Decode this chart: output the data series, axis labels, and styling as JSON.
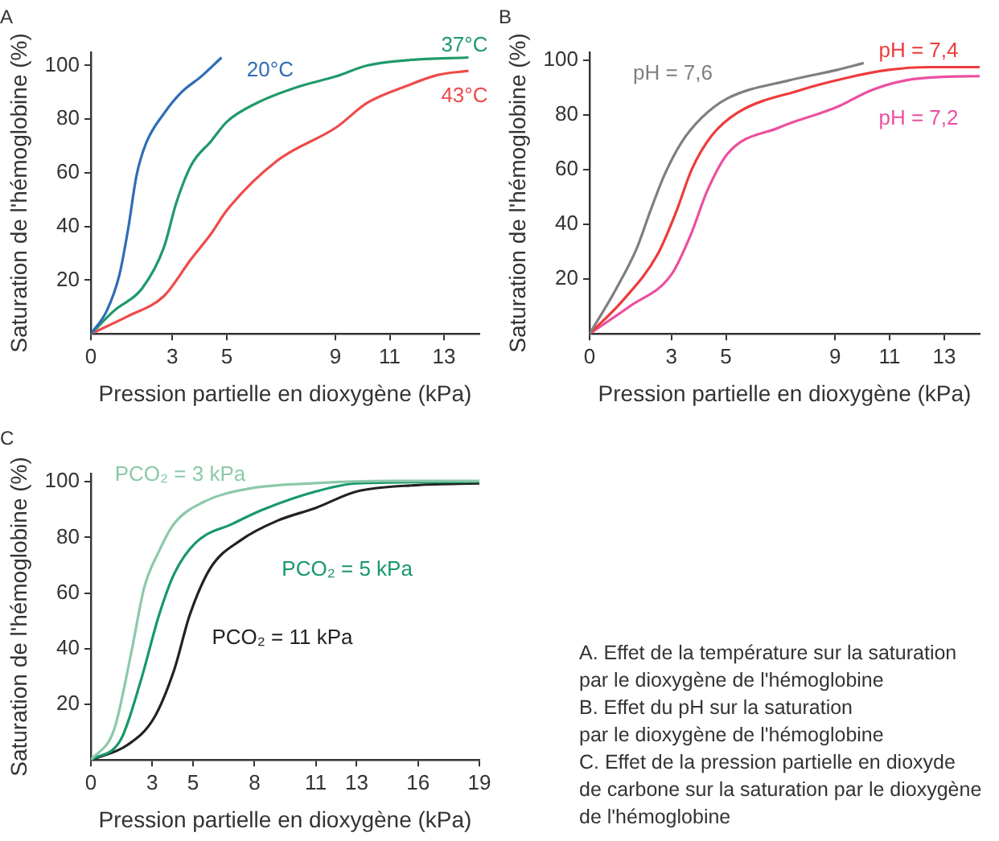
{
  "chart_data": [
    {
      "type": "line",
      "title": "A",
      "xlabel": "Pression partielle en dioxygène (kPa)",
      "ylabel": "Saturation de l'hémoglobine (%)",
      "xlim": [
        0,
        14.3
      ],
      "xticks": [
        0,
        3,
        5,
        9,
        11,
        13
      ],
      "ylim": [
        0,
        105
      ],
      "yticks": [
        20,
        40,
        60,
        80,
        100
      ],
      "grid": false,
      "legend": false,
      "marker": "none",
      "line_style": "solid",
      "series": [
        {
          "name": "20°C",
          "color": "#2f6db5",
          "x": [
            0,
            0.58,
            1.05,
            1.37,
            1.68,
            2.03,
            2.68,
            3.33,
            4.07,
            4.81
          ],
          "values": [
            0,
            8.5,
            22,
            39,
            59,
            71,
            82,
            90,
            96,
            103
          ]
        },
        {
          "name": "37°C",
          "color": "#1f9a6a",
          "x": [
            0,
            0.84,
            1.89,
            2.68,
            3.15,
            3.7,
            4.44,
            5,
            6.1,
            7.6,
            9.04,
            10.16,
            11.65,
            13.9
          ],
          "values": [
            0,
            8.5,
            17,
            32,
            49,
            63,
            72,
            79,
            86,
            92,
            96,
            100,
            102,
            103
          ]
        },
        {
          "name": "43°C",
          "color": "#ee4b4b",
          "x": [
            0,
            1.37,
            2.68,
            3.7,
            4.44,
            5,
            6.85,
            9.04,
            10.16,
            11.65,
            12.78,
            13.9
          ],
          "values": [
            0,
            6.6,
            14,
            28,
            37.5,
            46,
            64.5,
            77,
            86,
            92.5,
            96.5,
            98
          ]
        }
      ]
    },
    {
      "type": "line",
      "title": "B",
      "xlabel": "Pression partielle en dioxygène (kPa)",
      "ylabel": "Saturation de l'hémoglobine (%)",
      "xlim": [
        0,
        14.3
      ],
      "xticks": [
        0,
        3,
        5,
        9,
        11,
        13
      ],
      "ylim": [
        0,
        103
      ],
      "yticks": [
        20,
        40,
        60,
        80,
        100
      ],
      "grid": false,
      "legend": false,
      "marker": "none",
      "line_style": "solid",
      "series": [
        {
          "name": "pH = 7,6",
          "color": "#7f7f7f",
          "x": [
            0,
            0.95,
            1.72,
            2.23,
            2.74,
            3.37,
            4.11,
            5.04,
            7.32,
            9.09,
            10.05
          ],
          "values": [
            0,
            16,
            31,
            45,
            58,
            70,
            79,
            86,
            92.7,
            96.5,
            99
          ]
        },
        {
          "name": "pH = 7,4",
          "color": "#ee3b3b",
          "x": [
            0,
            1.2,
            2.49,
            3.19,
            3.74,
            4.48,
            5.45,
            7.69,
            9.47,
            10.96,
            12.44,
            14.3
          ],
          "values": [
            0,
            12,
            29,
            45,
            60,
            72.5,
            81,
            89,
            93.7,
            96.5,
            97.5,
            97.5
          ]
        },
        {
          "name": "pH = 7,2",
          "color": "#ec4fa0",
          "x": [
            0,
            1.46,
            3,
            3.74,
            4.3,
            5.07,
            6.94,
            9.09,
            10.31,
            11.6,
            13.1,
            14.3
          ],
          "values": [
            0,
            10,
            21.7,
            37,
            52,
            66,
            75.4,
            83,
            89,
            92.7,
            94,
            94.2
          ]
        }
      ]
    },
    {
      "type": "line",
      "title": "C",
      "xlabel": "Pression partielle en dioxygène (kPa)",
      "ylabel": "Saturation de l'hémoglobine (%)",
      "xlim": [
        0,
        19
      ],
      "xticks": [
        0,
        3,
        5,
        8,
        11,
        13,
        16,
        19
      ],
      "ylim": [
        0,
        103
      ],
      "yticks": [
        20,
        40,
        60,
        80,
        100
      ],
      "grid": false,
      "legend": false,
      "marker": "none",
      "line_style": "solid",
      "series": [
        {
          "name": "PCO₂ = 3 kPa",
          "color": "#8cc9a9",
          "x": [
            0,
            1.14,
            1.96,
            2.61,
            3.33,
            4.08,
            5.48,
            7.7,
            11,
            14.65,
            19
          ],
          "values": [
            0,
            11,
            38,
            62,
            75,
            85,
            92.6,
            97.5,
            99.5,
            100.3,
            100.3
          ]
        },
        {
          "name": "PCO₂ = 5 kPa",
          "color": "#17986a",
          "x": [
            0,
            1.47,
            2.45,
            3.33,
            4.08,
            5.11,
            6.96,
            8.42,
            11,
            13,
            19
          ],
          "values": [
            0,
            7.4,
            28.7,
            52,
            67,
            78,
            85,
            90,
            96.5,
            99.4,
            100
          ]
        },
        {
          "name": "PCO₂ = 11 kPa",
          "color": "#222222",
          "x": [
            0,
            1.79,
            3.08,
            4.08,
            4.83,
            5.85,
            7.33,
            9.12,
            11,
            13,
            16,
            19
          ],
          "values": [
            0,
            5.4,
            15,
            32.5,
            52,
            69,
            79,
            86,
            90.6,
            96.5,
            98.8,
            99.4
          ]
        }
      ]
    },
    {
      "type": "other",
      "annotations": [
        "A. Effet de la température sur la saturation",
        "par le dioxygène de l'hémoglobine",
        "B. Effet du pH sur la saturation",
        "par le dioxygène de l'hémoglobine",
        "C. Effet de la pression partielle en dioxyde",
        "de carbone sur la saturation par le dioxygène",
        "de l'hémoglobine"
      ]
    }
  ]
}
